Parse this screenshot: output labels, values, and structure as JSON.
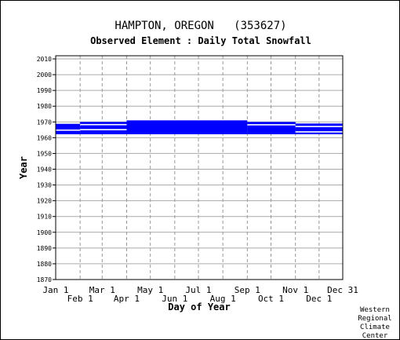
{
  "chart_data": {
    "type": "bar",
    "title": "HAMPTON, OREGON   (353627)",
    "subtitle": "Observed Element : Daily Total Snowfall",
    "xlabel": "Day of Year",
    "ylabel": "Year",
    "x_range": [
      1,
      365
    ],
    "ylim": [
      1870,
      2012
    ],
    "y_ticks": [
      1870,
      1880,
      1890,
      1900,
      1910,
      1920,
      1930,
      1940,
      1950,
      1960,
      1970,
      1980,
      1990,
      2000,
      2010
    ],
    "x_ticks_top": [
      {
        "label": "Jan 1",
        "day": 1
      },
      {
        "label": "Mar 1",
        "day": 60
      },
      {
        "label": "May 1",
        "day": 121
      },
      {
        "label": "Jul 1",
        "day": 182
      },
      {
        "label": "Sep 1",
        "day": 244
      },
      {
        "label": "Nov 1",
        "day": 305
      },
      {
        "label": "Dec 31",
        "day": 365
      }
    ],
    "x_ticks_bottom": [
      {
        "label": "Feb 1",
        "day": 32
      },
      {
        "label": "Apr 1",
        "day": 91
      },
      {
        "label": "Jun 1",
        "day": 152
      },
      {
        "label": "Aug 1",
        "day": 213
      },
      {
        "label": "Oct 1",
        "day": 274
      },
      {
        "label": "Dec 1",
        "day": 335
      }
    ],
    "grid": true,
    "series_color": "#0000ff",
    "data_periods": [
      {
        "start_day": 1,
        "end_day": 32,
        "year_from": 1962.2,
        "year_to": 1968.8
      },
      {
        "start_day": 32,
        "end_day": 91,
        "year_from": 1962.2,
        "year_to": 1970.0
      },
      {
        "start_day": 91,
        "end_day": 244,
        "year_from": 1962.2,
        "year_to": 1971.0
      },
      {
        "start_day": 244,
        "end_day": 305,
        "year_from": 1962.2,
        "year_to": 1970.0
      },
      {
        "start_day": 305,
        "end_day": 365,
        "year_from": 1962.2,
        "year_to": 1969.0
      }
    ],
    "gap_years": [
      {
        "start_day": 1,
        "end_day": 32,
        "year": 1964.7
      },
      {
        "start_day": 32,
        "end_day": 91,
        "year": 1965.0
      },
      {
        "start_day": 32,
        "end_day": 91,
        "year": 1968.2
      },
      {
        "start_day": 244,
        "end_day": 305,
        "year": 1968.1
      },
      {
        "start_day": 305,
        "end_day": 365,
        "year": 1963.6
      },
      {
        "start_day": 305,
        "end_day": 365,
        "year": 1967.0
      }
    ]
  },
  "credit": {
    "lines": [
      "Western",
      "Regional",
      "Climate",
      "Center"
    ]
  }
}
